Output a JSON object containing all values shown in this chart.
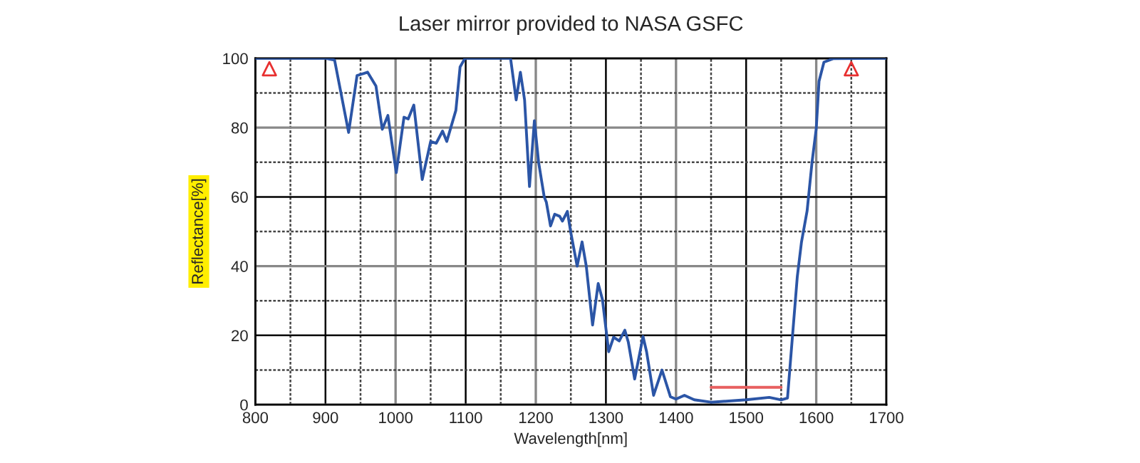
{
  "chart_data": {
    "type": "line",
    "title": "Laser mirror provided to NASA GSFC",
    "xlabel": "Wavelength[nm]",
    "ylabel": "Reflectance[%]",
    "xlim": [
      800,
      1700
    ],
    "xticks": [
      800,
      900,
      1000,
      1100,
      1200,
      1300,
      1400,
      1500,
      1600,
      1700
    ],
    "ylim": [
      0,
      100
    ],
    "yticks": [
      0,
      20,
      40,
      60,
      80,
      100
    ],
    "grid": true,
    "series": [
      {
        "color": "#2b55a6",
        "x": [
          800,
          850,
          900,
          913,
          933,
          945,
          960,
          972,
          981,
          989,
          1001,
          1012,
          1018,
          1026,
          1038,
          1050,
          1058,
          1067,
          1073,
          1086,
          1092,
          1099,
          1164,
          1172,
          1178,
          1184,
          1191,
          1198,
          1204,
          1212,
          1215,
          1221,
          1227,
          1234,
          1238,
          1245,
          1250,
          1259,
          1266,
          1272,
          1281,
          1289,
          1295,
          1304,
          1311,
          1319,
          1327,
          1332,
          1341,
          1353,
          1358,
          1368,
          1380,
          1392,
          1400,
          1412,
          1426,
          1450,
          1500,
          1533,
          1550,
          1559,
          1567,
          1573,
          1579,
          1587,
          1594,
          1600,
          1604,
          1611,
          1624,
          1700
        ],
        "values": [
          100,
          100,
          100,
          99.5,
          78.6,
          95,
          96,
          92,
          79.5,
          83.5,
          67,
          83,
          82.5,
          86.5,
          65,
          76,
          75.5,
          79,
          76,
          85,
          97.5,
          100,
          100,
          88,
          96,
          88,
          63,
          82,
          70,
          60,
          58.5,
          51.6,
          55,
          54.4,
          53,
          55.8,
          49.6,
          40,
          47,
          40,
          23,
          35,
          30.4,
          15.3,
          19.5,
          18.4,
          21.5,
          18,
          7.4,
          19.7,
          15.3,
          2.7,
          10,
          2.3,
          1.6,
          2.7,
          1.4,
          0.7,
          1.4,
          2.1,
          1.4,
          1.9,
          22,
          37,
          47,
          56,
          70,
          79.7,
          93.4,
          98.9,
          99.9,
          100
        ]
      },
      {
        "type": "line",
        "color": "#e86060",
        "x": [
          1450,
          1550
        ],
        "values": [
          5,
          5
        ]
      },
      {
        "type": "scatter",
        "color": "#e83030",
        "marker": "triangle",
        "x": [
          820,
          1650
        ],
        "values": [
          97,
          97
        ]
      }
    ]
  }
}
